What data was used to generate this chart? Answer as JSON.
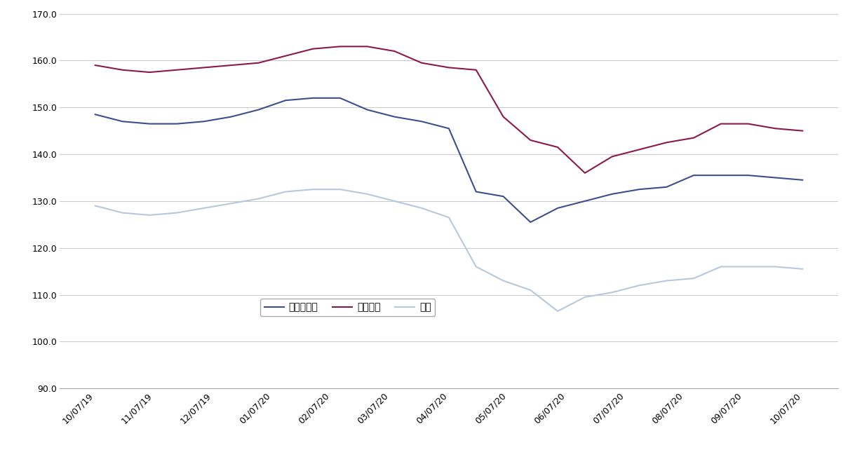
{
  "x_labels": [
    "10/07/19",
    "11/07/19",
    "12/07/19",
    "01/07/20",
    "02/07/20",
    "03/07/20",
    "04/07/20",
    "05/07/20",
    "06/07/20",
    "07/07/20",
    "08/07/20",
    "09/07/20",
    "10/07/20"
  ],
  "regular": [
    148.5,
    147.0,
    146.5,
    146.5,
    147.0,
    148.0,
    149.5,
    151.5,
    152.0,
    152.0,
    149.5,
    148.0,
    147.0,
    145.5,
    132.0,
    131.0,
    125.5,
    128.5,
    130.0,
    131.5,
    132.5,
    133.0,
    135.5,
    135.5,
    135.5,
    135.0,
    134.5
  ],
  "highoc": [
    159.0,
    158.0,
    157.5,
    158.0,
    158.5,
    159.0,
    159.5,
    161.0,
    162.5,
    163.0,
    163.0,
    162.0,
    159.5,
    158.5,
    158.0,
    148.0,
    143.0,
    141.5,
    136.0,
    139.5,
    141.0,
    142.5,
    143.5,
    146.5,
    146.5,
    145.5,
    145.0
  ],
  "diesel": [
    129.0,
    127.5,
    127.0,
    127.5,
    128.5,
    129.5,
    130.5,
    132.0,
    132.5,
    132.5,
    131.5,
    130.0,
    128.5,
    126.5,
    116.0,
    113.0,
    111.0,
    106.5,
    109.5,
    110.5,
    112.0,
    113.0,
    113.5,
    116.0,
    116.0,
    116.0,
    115.5
  ],
  "regular_color": "#3D4E8C",
  "highoc_color": "#8B1A4A",
  "diesel_color": "#B8C8DC",
  "ylim": [
    90.0,
    170.0
  ],
  "ytick_step": 10.0,
  "background_color": "#FFFFFF",
  "grid_color": "#CCCCCC",
  "legend_labels": [
    "レギュラー",
    "ハイオク",
    "軽油"
  ]
}
